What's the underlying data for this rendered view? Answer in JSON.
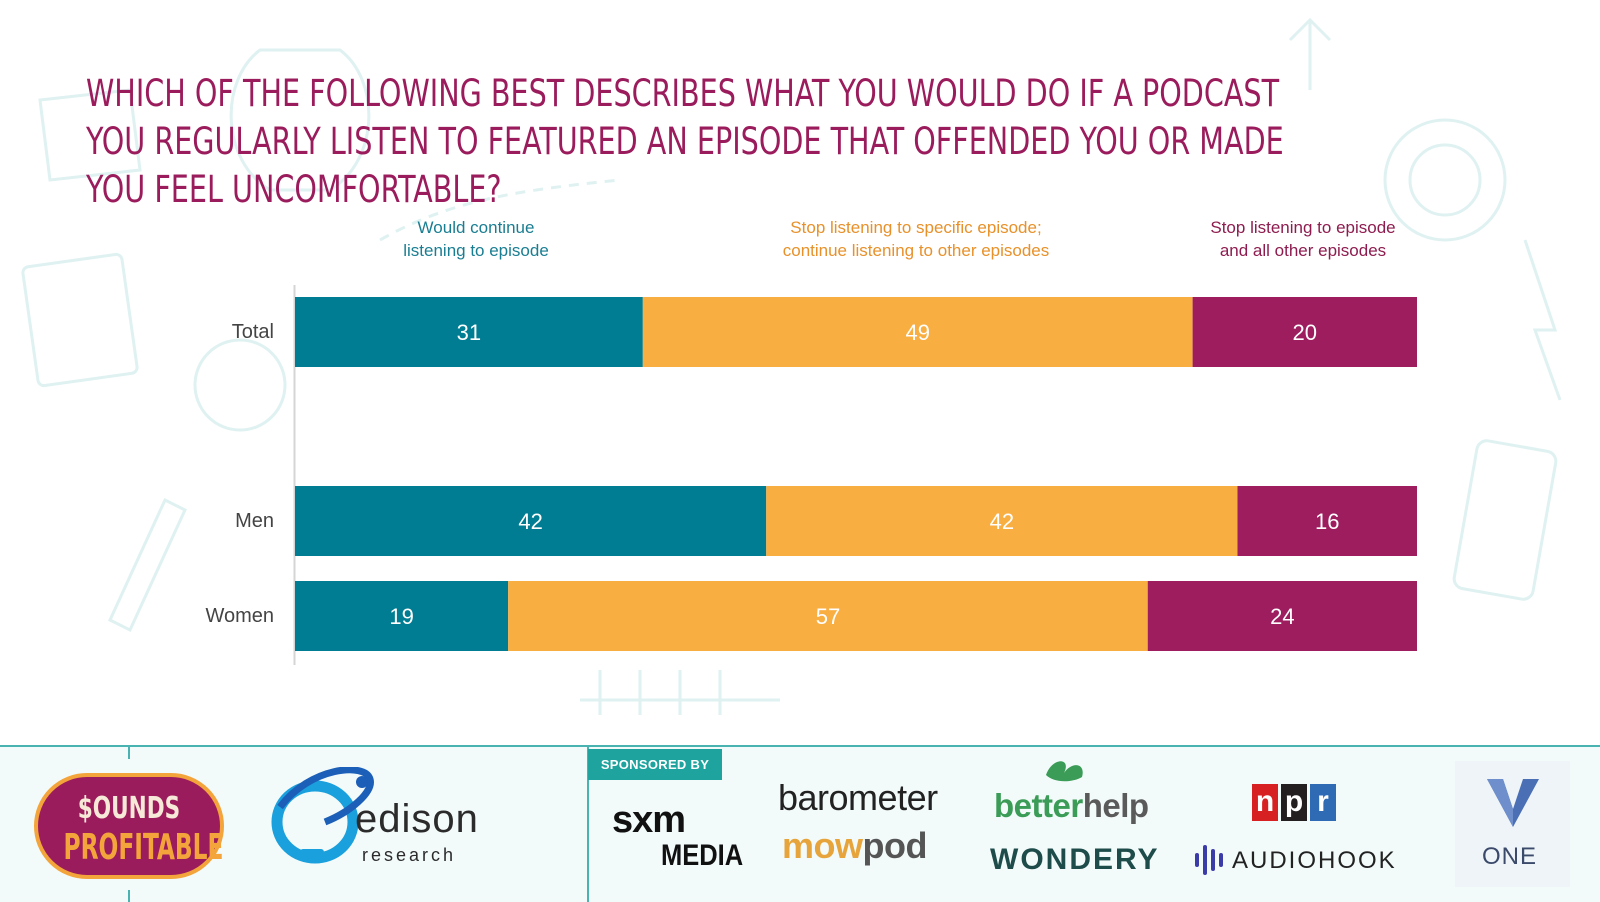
{
  "title": "Which of the following best describes what you would do if a podcast you regularly listen to featured an episode that offended you or made you feel uncomfortable?",
  "chart_data": {
    "type": "stacked-bar-horizontal",
    "title": "Which of the following best describes what you would do if a podcast you regularly listen to featured an episode that offended you or made you feel uncomfortable?",
    "categories": [
      "Total",
      "Men",
      "Women"
    ],
    "series": [
      {
        "name": "Would continue listening to episode",
        "label_lines": [
          "Would continue",
          "listening to episode"
        ],
        "color": "#007d92",
        "values": [
          31,
          42,
          19
        ]
      },
      {
        "name": "Stop listening to specific episode; continue listening to other episodes",
        "label_lines": [
          "Stop listening to specific episode;",
          "continue listening to other episodes"
        ],
        "color": "#f9ae42",
        "values": [
          49,
          42,
          57
        ]
      },
      {
        "name": "Stop listening to episode and all other episodes",
        "label_lines": [
          "Stop listening to episode",
          "and all other episodes"
        ],
        "color": "#9e1d5f",
        "values": [
          20,
          16,
          24
        ]
      }
    ],
    "xlim": [
      0,
      100
    ],
    "legend": "top",
    "grid": false
  },
  "footer": {
    "sounds_profitable": {
      "line1": "$OUNDS",
      "line2": "PROFITABLE"
    },
    "edison": {
      "word": "edison",
      "sub": "research"
    },
    "sponsored_by": "SPONSORED BY",
    "sponsors": {
      "sxm": "sxm",
      "sxm_media": "MEDIA",
      "barometer": "barometer",
      "mowpod_a": "mow",
      "mowpod_b": "pod",
      "betterhelp_a": "better",
      "betterhelp_b": "help",
      "wondery": "WONDERY",
      "npr": [
        "n",
        "p",
        "r"
      ],
      "audiohook": "AUDIOHOOK",
      "one": "ONE"
    },
    "colors": {
      "accent": "#49b3b1",
      "npr_n": "#d62021",
      "npr_p": "#231f20",
      "npr_r": "#2f6bb5"
    }
  }
}
